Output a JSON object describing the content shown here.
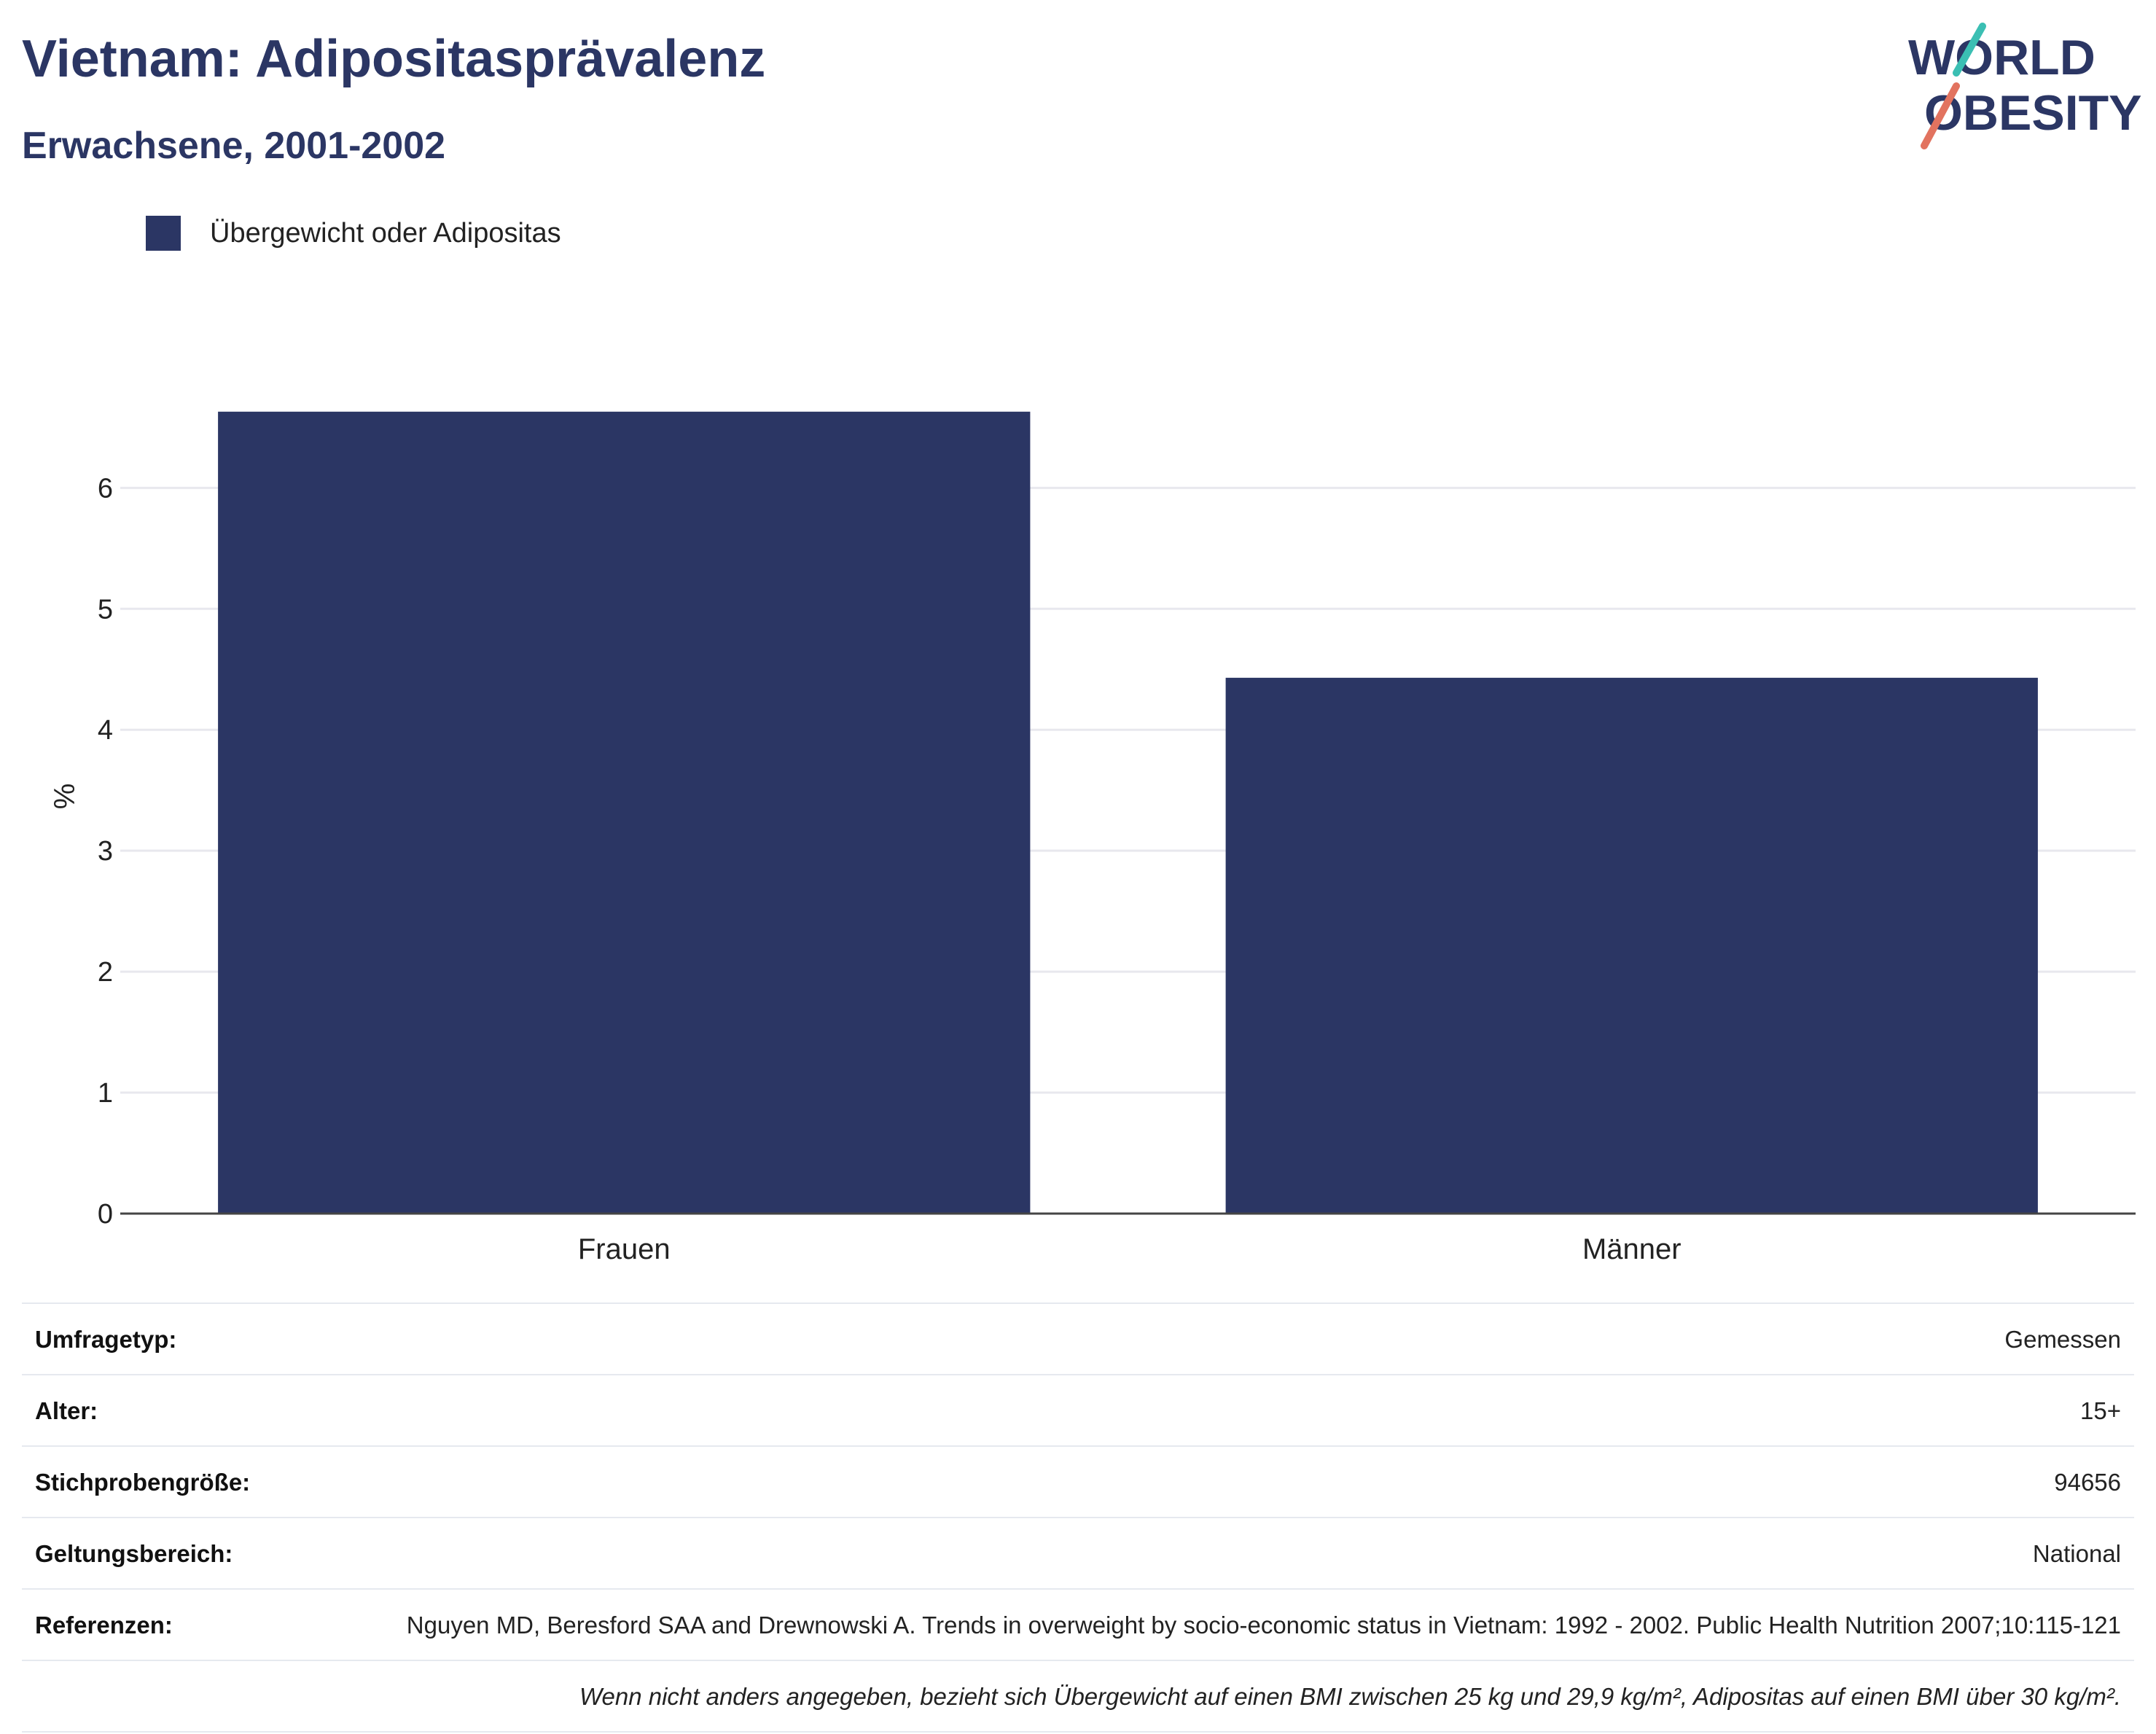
{
  "header": {
    "title": "Vietnam: Adipositasprävalenz",
    "subtitle": "Erwachsene, 2001-2002"
  },
  "logo": {
    "line1": "WORLD",
    "line2": "OBESITY"
  },
  "colors": {
    "bar": "#2b3664",
    "title": "#2b3664",
    "accent_teal": "#3bbfb3",
    "accent_coral": "#e2735f",
    "grid": "#e8e8ee"
  },
  "chart_data": {
    "type": "bar",
    "categories": [
      "Frauen",
      "Männer"
    ],
    "series": [
      {
        "name": "Übergewicht oder Adipositas",
        "values": [
          6.63,
          4.43
        ]
      }
    ],
    "ylabel": "%",
    "yticks": [
      0,
      1,
      2,
      3,
      4,
      5,
      6
    ],
    "ylim": [
      0,
      6.9
    ],
    "grid": true,
    "legend_position": "top-left"
  },
  "info": {
    "rows": [
      {
        "label": "Umfragetyp:",
        "value": "Gemessen"
      },
      {
        "label": "Alter:",
        "value": "15+"
      },
      {
        "label": "Stichprobengröße:",
        "value": "94656"
      },
      {
        "label": "Geltungsbereich:",
        "value": "National"
      },
      {
        "label": "Referenzen:",
        "value": "Nguyen MD, Beresford SAA and Drewnowski A. Trends in overweight by socio-economic status in Vietnam: 1992 - 2002. Public Health Nutrition 2007;10:115-121"
      }
    ],
    "note": "Wenn nicht anders angegeben, bezieht sich Übergewicht auf einen BMI zwischen 25 kg und 29,9 kg/m², Adipositas auf einen BMI über 30 kg/m²."
  }
}
